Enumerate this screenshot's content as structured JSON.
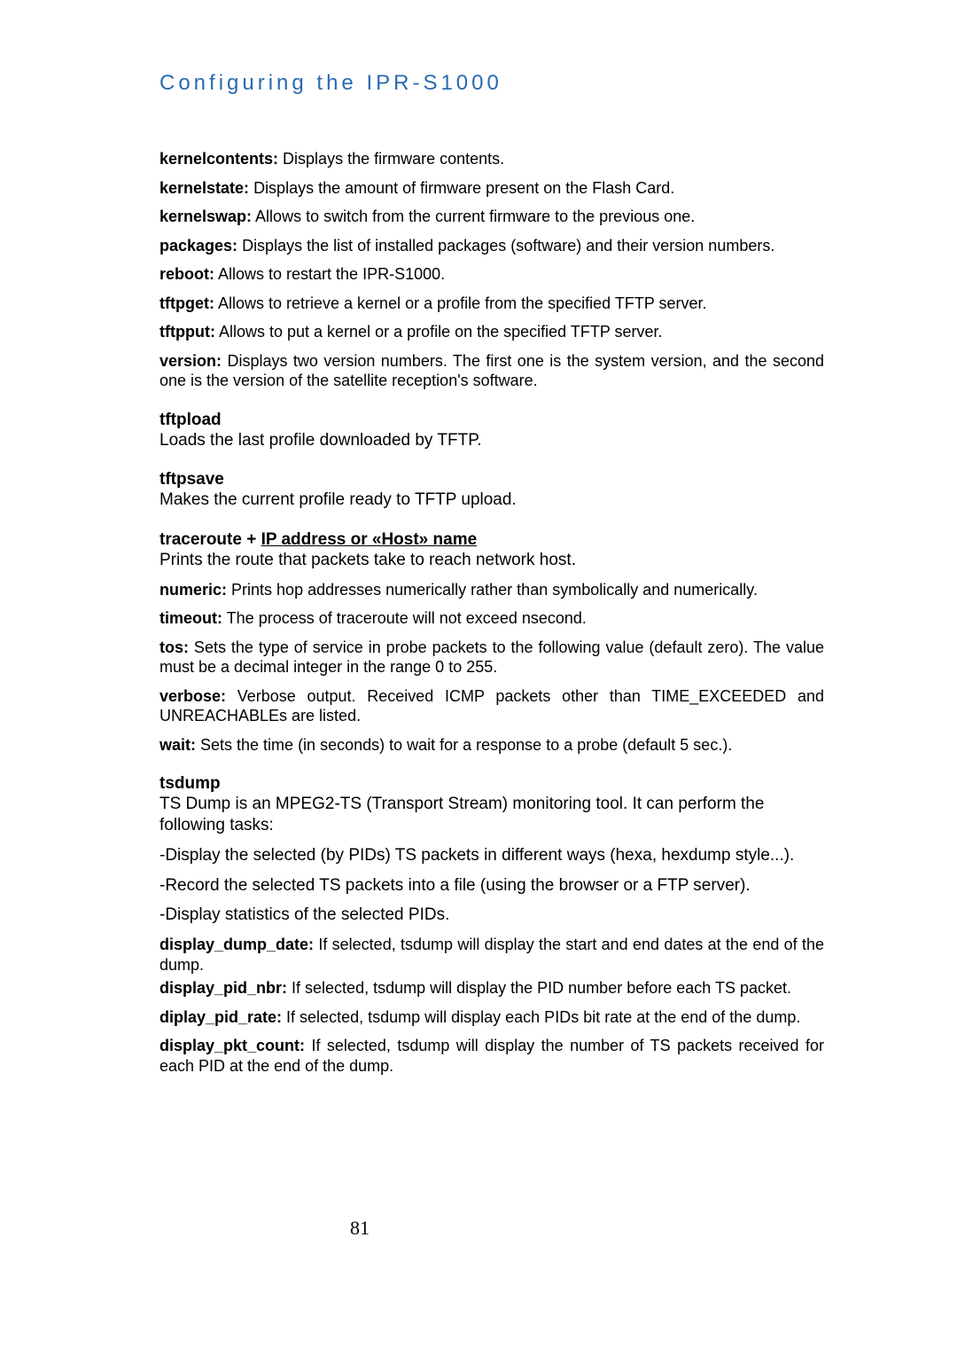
{
  "page": {
    "title": "Configuring the IPR-S1000",
    "number": "81"
  },
  "entries": [
    {
      "term": "kernelcontents:",
      "desc": " Displays the firmware contents."
    },
    {
      "term": "kernelstate:",
      "desc": " Displays the amount of firmware present on the Flash Card."
    },
    {
      "term": "kernelswap:",
      "desc": " Allows to switch from the current firmware to the previous one."
    },
    {
      "term": "packages:",
      "desc": " Displays the list of installed packages (software) and their version numbers."
    },
    {
      "term": "reboot:",
      "desc": " Allows to restart the IPR-S1000."
    },
    {
      "term": "tftpget:",
      "desc": " Allows to retrieve a kernel or a profile from the specified TFTP server."
    },
    {
      "term": "tftpput:",
      "desc": " Allows to put a kernel or a profile on the specified TFTP server."
    },
    {
      "term": "version:",
      "desc": " Displays two version numbers. The first one is the system version, and the second one is the version of the satellite reception's software."
    }
  ],
  "sections": {
    "tftpload": {
      "title": "tftpload",
      "lead": "Loads the last profile downloaded by TFTP."
    },
    "tftpsave": {
      "title": "tftpsave",
      "lead": "Makes the current profile ready to TFTP upload."
    },
    "traceroute": {
      "title_prefix": "traceroute + ",
      "title_link": "IP address or «Host» name",
      "lead": "Prints the route that packets take to reach network host.",
      "items": [
        {
          "term": "numeric:",
          "desc": " Prints hop addresses numerically rather than symbolically and numerically."
        },
        {
          "term": "timeout:",
          "desc": " The process of traceroute will not exceed nsecond."
        },
        {
          "term": "tos:",
          "desc": " Sets the type of service in probe packets to the following value (default zero). The value must be a decimal integer in the range 0 to 255."
        },
        {
          "term": "verbose:",
          "desc": " Verbose output. Received ICMP packets other than TIME_EXCEEDED and UNREACHABLEs are listed."
        },
        {
          "term": "wait:",
          "desc": " Sets the time (in seconds) to wait for a response to a probe (default 5 sec.)."
        }
      ]
    },
    "tsdump": {
      "title": "tsdump",
      "lead_lines": [
        "TS Dump is an MPEG2-TS (Transport Stream) monitoring tool. It can perform the following tasks:",
        "-Display the selected (by PIDs) TS packets in different ways (hexa, hexdump style...).",
        "-Record the selected TS packets into a file (using the browser or a FTP server).",
        "-Display statistics of the selected PIDs."
      ],
      "items": [
        {
          "term": "display_dump_date:",
          "desc": " If selected, tsdump will display the start and end dates at the end of the dump."
        },
        {
          "term": "display_pid_nbr:",
          "desc": " If selected, tsdump will display the PID number before each TS packet."
        },
        {
          "term": "diplay_pid_rate:",
          "desc": " If selected, tsdump will display each PIDs bit rate at the end of the dump."
        },
        {
          "term": "display_pkt_count:",
          "desc": " If selected, tsdump will display the number of TS packets received for each PID at the end of the dump."
        }
      ]
    }
  }
}
